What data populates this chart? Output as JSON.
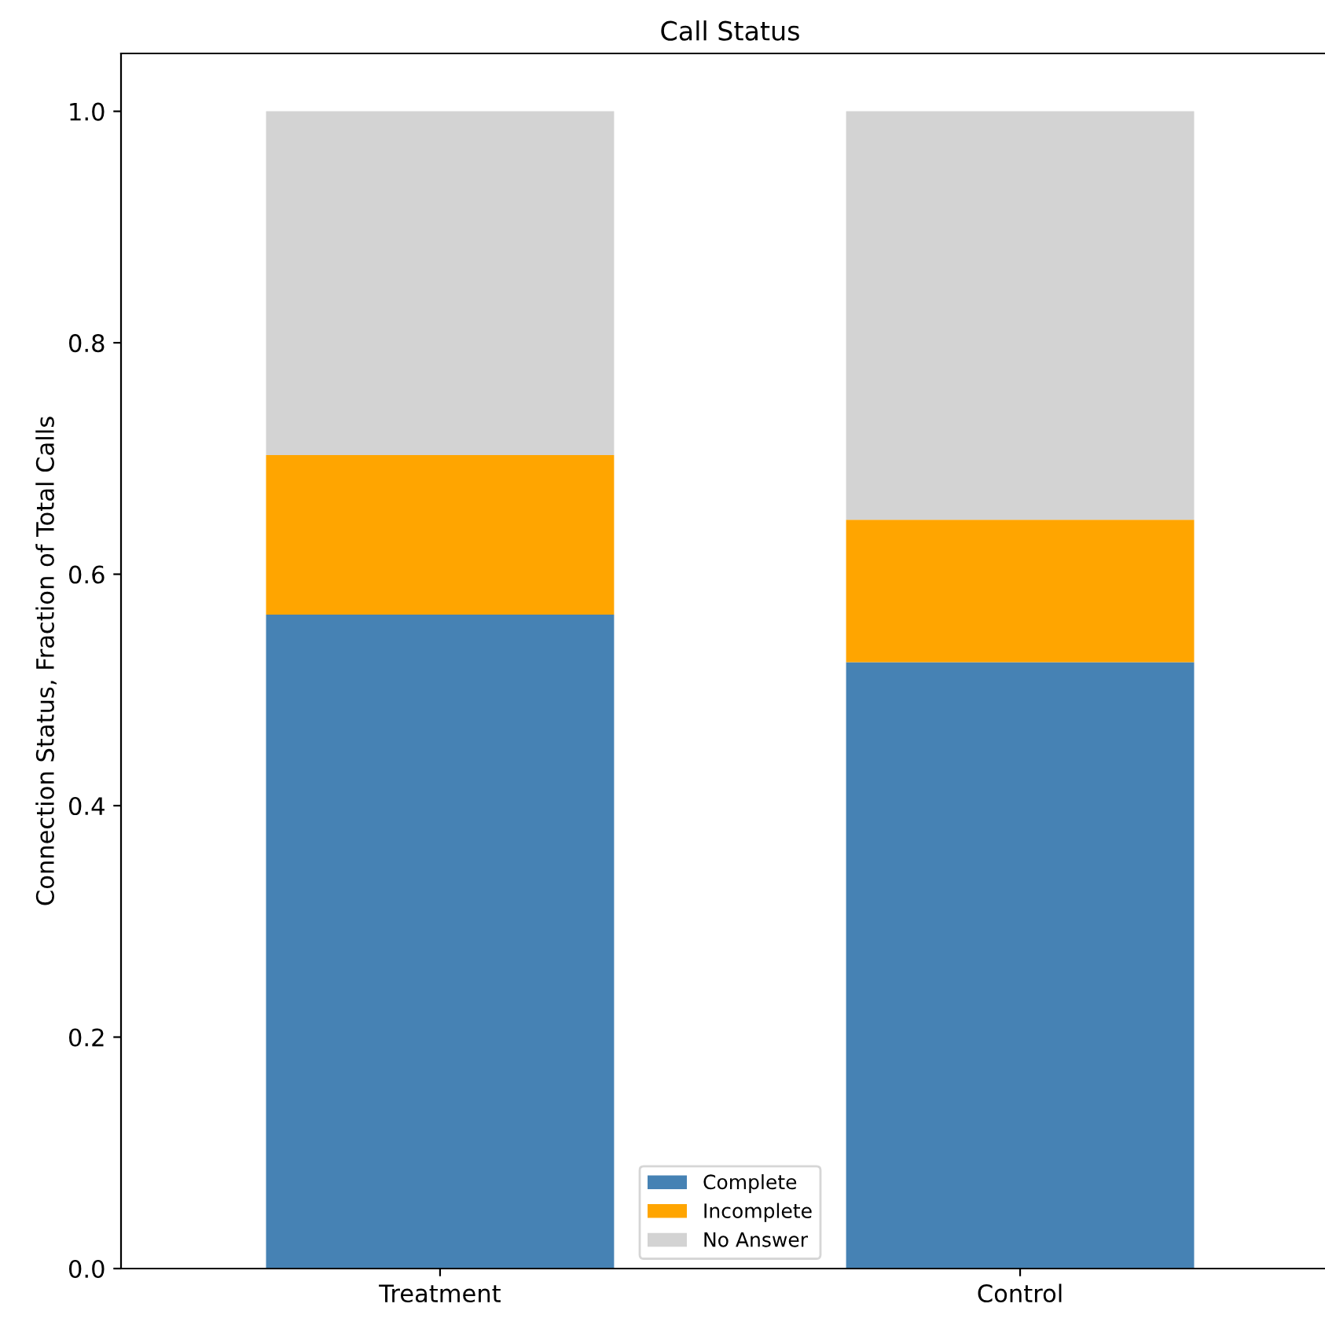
{
  "chart_data": {
    "type": "bar",
    "title": "Call Status",
    "ylabel": "Connection Status, Fraction of Total Calls",
    "categories": [
      "Treatment",
      "Control"
    ],
    "stacked": true,
    "series": [
      {
        "name": "Complete",
        "color": "#4682b4",
        "values": [
          0.565,
          0.524
        ]
      },
      {
        "name": "Incomplete",
        "color": "#ffa500",
        "values": [
          0.138,
          0.123
        ]
      },
      {
        "name": "No Answer",
        "color": "#d3d3d3",
        "values": [
          0.297,
          0.353
        ]
      }
    ],
    "ylim": [
      0,
      1.05
    ],
    "yticks": [
      {
        "value": 0,
        "label": "0.0"
      },
      {
        "value": 0.2,
        "label": "0.2"
      },
      {
        "value": 0.4,
        "label": "0.4"
      },
      {
        "value": 0.6,
        "label": "0.6"
      },
      {
        "value": 0.8,
        "label": "0.8"
      },
      {
        "value": 1.0,
        "label": "1.0"
      }
    ],
    "grid": false,
    "legend": "bottom"
  }
}
